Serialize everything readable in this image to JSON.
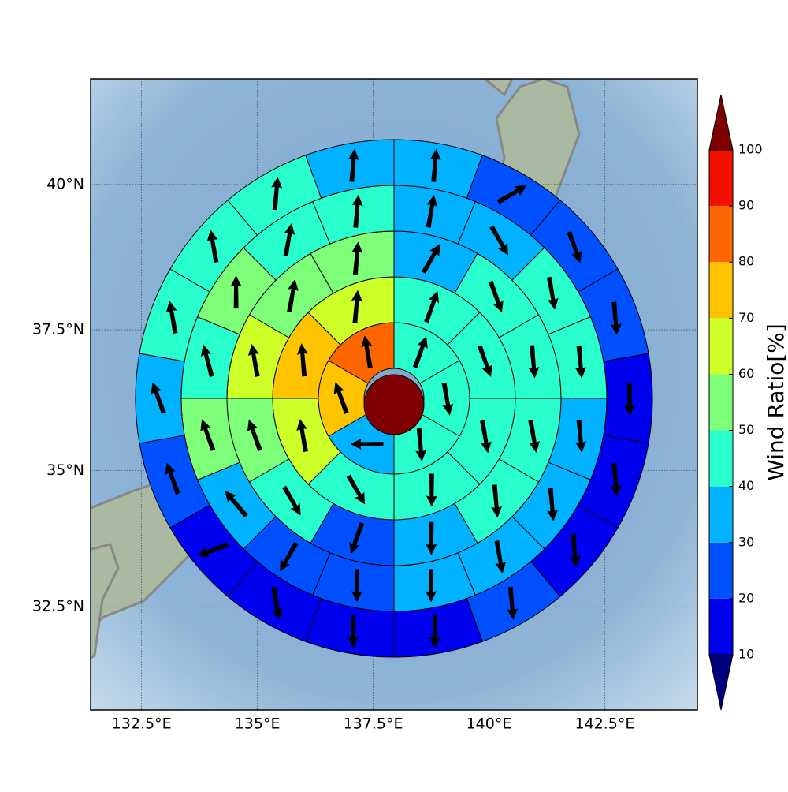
{
  "chart_data": {
    "type": "polar_sector_map",
    "projection": "mercator",
    "xlim": [
      131.4,
      144.5
    ],
    "ylim": [
      30.56,
      41.76
    ],
    "grid": true,
    "xticks": [
      {
        "value": 132.5,
        "label": "132.5°E"
      },
      {
        "value": 135,
        "label": "135°E"
      },
      {
        "value": 137.5,
        "label": "137.5°E"
      },
      {
        "value": 140,
        "label": "140°E"
      },
      {
        "value": 142.5,
        "label": "142.5°E"
      }
    ],
    "yticks": [
      {
        "value": 32.5,
        "label": "32.5°N"
      },
      {
        "value": 35,
        "label": "35°N"
      },
      {
        "value": 37.5,
        "label": "37.5°N"
      },
      {
        "value": 40,
        "label": "40°N"
      }
    ],
    "rings": [
      {
        "values": [
          45,
          45,
          45,
          35,
          75,
          85
        ],
        "directions": [
          20,
          170,
          175,
          270,
          340,
          350
        ]
      },
      {
        "values": [
          45,
          45,
          45,
          45,
          45,
          65,
          75,
          65
        ],
        "directions": [
          20,
          160,
          170,
          180,
          150,
          350,
          355,
          5
        ]
      },
      {
        "values": [
          35,
          45,
          45,
          45,
          45,
          35,
          25,
          45,
          55,
          65,
          55,
          55
        ],
        "directions": [
          30,
          160,
          175,
          170,
          175,
          180,
          200,
          150,
          340,
          350,
          10,
          5
        ]
      },
      {
        "values": [
          35,
          35,
          45,
          45,
          35,
          35,
          35,
          35,
          25,
          25,
          35,
          55,
          45,
          55,
          45,
          45
        ],
        "directions": [
          10,
          150,
          170,
          175,
          175,
          175,
          170,
          180,
          180,
          210,
          320,
          340,
          345,
          0,
          10,
          5
        ]
      },
      {
        "values": [
          35,
          25,
          25,
          25,
          18,
          18,
          15,
          25,
          15,
          15,
          15,
          15,
          25,
          35,
          45,
          45,
          45,
          35
        ],
        "directions": [
          5,
          60,
          160,
          175,
          180,
          175,
          175,
          175,
          180,
          180,
          170,
          250,
          340,
          340,
          350,
          350,
          5,
          5
        ]
      }
    ],
    "colorbar": {
      "label": "Wind Ratio[%]",
      "levels": [
        10,
        20,
        30,
        40,
        50,
        60,
        70,
        80,
        90,
        100
      ],
      "colors": [
        "#0000f0",
        "#0050ff",
        "#00b2ff",
        "#29ffcd",
        "#7dff7a",
        "#cdff29",
        "#ffc300",
        "#ff6600",
        "#f10f00"
      ],
      "under_color": "#00007f",
      "over_color": "#7f0000"
    },
    "arrow_color": "#000000"
  }
}
